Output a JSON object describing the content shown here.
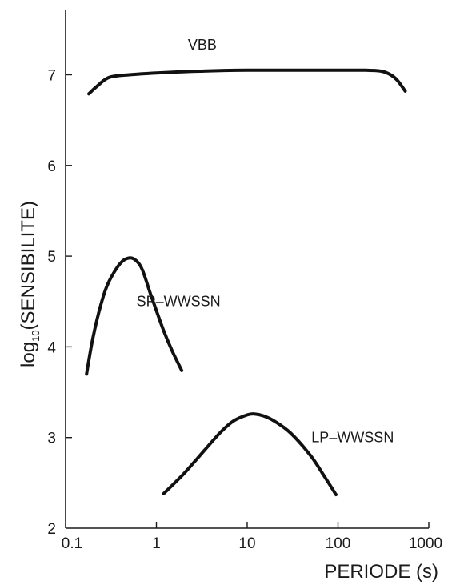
{
  "chart_data": {
    "type": "line",
    "title": "",
    "xlabel": "PERIODE (s)",
    "ylabel": {
      "prefix": "log",
      "subscript": "10",
      "suffix": "(SENSIBILITE)"
    },
    "xscale": "log",
    "xlim": [
      0.1,
      1000
    ],
    "ylim": [
      2,
      7.6
    ],
    "xticks": [
      0.1,
      1,
      10,
      100,
      1000
    ],
    "xtick_labels": [
      "0.1",
      "1",
      "10",
      "100",
      "1000"
    ],
    "yticks": [
      2,
      3,
      4,
      5,
      6,
      7
    ],
    "ytick_labels": [
      "2",
      "3",
      "4",
      "5",
      "6",
      "7"
    ],
    "grid": false,
    "legend": "none",
    "series": [
      {
        "name": "VBB",
        "x": [
          0.18,
          0.22,
          0.3,
          0.5,
          1,
          3,
          10,
          30,
          100,
          200,
          300,
          380,
          450,
          550
        ],
        "y": [
          6.79,
          6.87,
          6.97,
          7.0,
          7.02,
          7.04,
          7.05,
          7.05,
          7.05,
          7.05,
          7.04,
          7.0,
          6.94,
          6.82
        ]
      },
      {
        "name": "SP–WWSSN",
        "x": [
          0.17,
          0.2,
          0.25,
          0.3,
          0.4,
          0.5,
          0.6,
          0.7,
          0.85,
          1.0,
          1.2,
          1.5,
          1.9
        ],
        "y": [
          3.7,
          4.1,
          4.5,
          4.72,
          4.92,
          4.98,
          4.95,
          4.85,
          4.6,
          4.4,
          4.18,
          3.95,
          3.74
        ]
      },
      {
        "name": "LP–WWSSN",
        "x": [
          1.2,
          2,
          3,
          5,
          7,
          10,
          12,
          15,
          20,
          30,
          50,
          70,
          95
        ],
        "y": [
          2.38,
          2.6,
          2.8,
          3.05,
          3.18,
          3.25,
          3.26,
          3.24,
          3.18,
          3.05,
          2.8,
          2.58,
          2.37
        ]
      }
    ],
    "annotations": [
      {
        "text": "VBB",
        "x": 3.2,
        "y": 7.28
      },
      {
        "text": "SP–WWSSN",
        "x": 1.75,
        "y": 4.45
      },
      {
        "text": "LP–WWSSN",
        "x": 145,
        "y": 2.95
      }
    ]
  }
}
